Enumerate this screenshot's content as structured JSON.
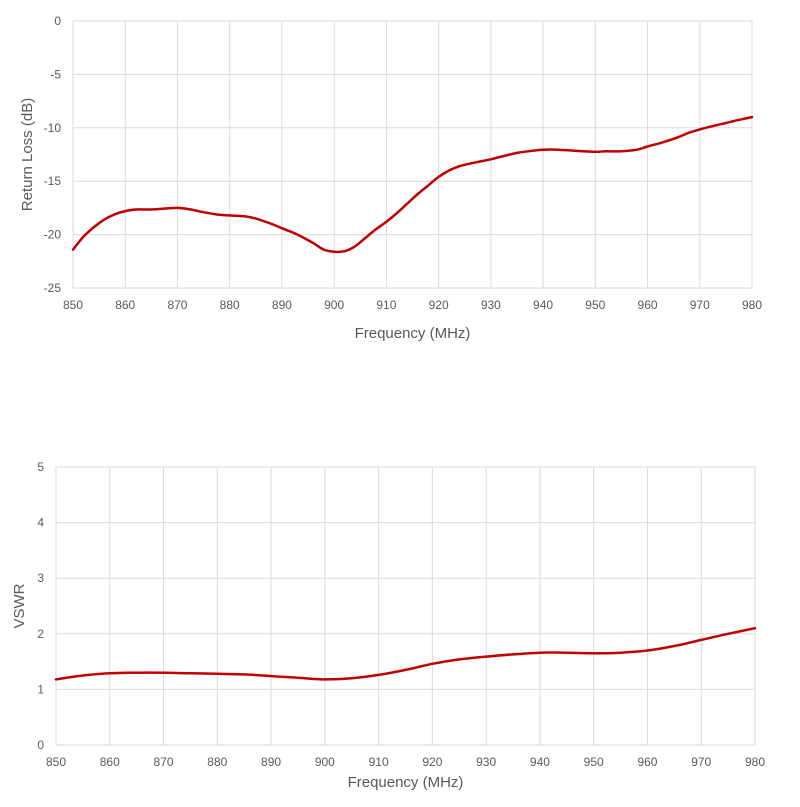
{
  "colors": {
    "series": "#c00000",
    "grid": "#d9d9d9",
    "text": "#595959"
  },
  "chart_data": [
    {
      "type": "line",
      "title": "",
      "xlabel": "Frequency (MHz)",
      "ylabel": "Return Loss (dB)",
      "xlim": [
        850,
        980
      ],
      "ylim": [
        -25,
        0
      ],
      "xticks": [
        850,
        860,
        870,
        880,
        890,
        900,
        910,
        920,
        930,
        940,
        950,
        960,
        970,
        980
      ],
      "yticks": [
        0,
        -5,
        -10,
        -15,
        -20,
        -25
      ],
      "grid": true,
      "series": [
        {
          "x": [
            850,
            852,
            854,
            856,
            858,
            860,
            862,
            865,
            868,
            870,
            872,
            875,
            878,
            880,
            883,
            885,
            888,
            890,
            893,
            896,
            898,
            900,
            902,
            904,
            906,
            908,
            910,
            912,
            914,
            916,
            918,
            920,
            922,
            924,
            926,
            928,
            930,
            932,
            935,
            938,
            940,
            943,
            946,
            950,
            952,
            955,
            958,
            960,
            963,
            966,
            968,
            970,
            972,
            975,
            978,
            980
          ],
          "y": [
            -21.4,
            -20.2,
            -19.3,
            -18.6,
            -18.1,
            -17.8,
            -17.65,
            -17.65,
            -17.55,
            -17.5,
            -17.6,
            -17.9,
            -18.15,
            -18.2,
            -18.3,
            -18.5,
            -19.0,
            -19.4,
            -20.0,
            -20.8,
            -21.4,
            -21.6,
            -21.55,
            -21.1,
            -20.3,
            -19.5,
            -18.8,
            -18.0,
            -17.1,
            -16.2,
            -15.4,
            -14.6,
            -14.0,
            -13.6,
            -13.35,
            -13.15,
            -12.95,
            -12.7,
            -12.35,
            -12.15,
            -12.05,
            -12.05,
            -12.15,
            -12.25,
            -12.2,
            -12.2,
            -12.05,
            -11.75,
            -11.35,
            -10.85,
            -10.45,
            -10.15,
            -9.9,
            -9.55,
            -9.2,
            -9.0
          ]
        }
      ]
    },
    {
      "type": "line",
      "title": "",
      "xlabel": "Frequency (MHz)",
      "ylabel": "VSWR",
      "xlim": [
        850,
        980
      ],
      "ylim": [
        0,
        5
      ],
      "xticks": [
        850,
        860,
        870,
        880,
        890,
        900,
        910,
        920,
        930,
        940,
        950,
        960,
        970,
        980
      ],
      "yticks": [
        5,
        4,
        3,
        2,
        1,
        0
      ],
      "grid": true,
      "series": [
        {
          "x": [
            850,
            855,
            860,
            865,
            870,
            875,
            880,
            885,
            890,
            895,
            900,
            905,
            910,
            915,
            920,
            925,
            930,
            935,
            940,
            945,
            950,
            955,
            960,
            965,
            970,
            975,
            980
          ],
          "y": [
            1.18,
            1.25,
            1.29,
            1.3,
            1.3,
            1.29,
            1.28,
            1.27,
            1.24,
            1.21,
            1.18,
            1.2,
            1.26,
            1.35,
            1.46,
            1.54,
            1.59,
            1.63,
            1.66,
            1.66,
            1.65,
            1.66,
            1.7,
            1.78,
            1.89,
            2.0,
            2.1
          ]
        }
      ]
    }
  ]
}
